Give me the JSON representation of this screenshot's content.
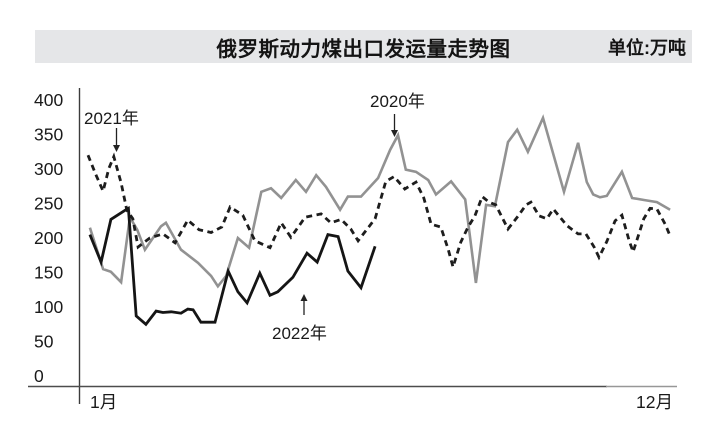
{
  "header": {
    "title": "俄罗斯动力煤出口发运量走势图",
    "unit": "单位:万吨"
  },
  "chart_data": {
    "type": "line",
    "title": "俄罗斯动力煤出口发运量走势图",
    "unit_label": "单位:万吨",
    "ylabel": "万吨",
    "ylim": [
      0,
      400
    ],
    "y_ticks": [
      400,
      350,
      300,
      250,
      200,
      150,
      100,
      50,
      0
    ],
    "x_axis": {
      "start_label": "1月",
      "end_label": "12月",
      "range_months": [
        1,
        13
      ]
    },
    "grid": false,
    "legend_style": "arrow-annotations",
    "series": [
      {
        "name": "2020",
        "label": "2020年",
        "line_style": "solid",
        "color": "#929292",
        "points": [
          [
            1.04,
            215
          ],
          [
            1.31,
            155
          ],
          [
            1.47,
            151
          ],
          [
            1.68,
            136
          ],
          [
            1.86,
            230
          ],
          [
            2.01,
            212
          ],
          [
            2.17,
            183
          ],
          [
            2.5,
            217
          ],
          [
            2.6,
            222
          ],
          [
            2.91,
            183
          ],
          [
            3.26,
            164
          ],
          [
            3.53,
            145
          ],
          [
            3.67,
            130
          ],
          [
            3.84,
            145
          ],
          [
            4.08,
            200
          ],
          [
            4.31,
            186
          ],
          [
            4.56,
            267
          ],
          [
            4.76,
            272
          ],
          [
            4.97,
            258
          ],
          [
            5.27,
            284
          ],
          [
            5.48,
            267
          ],
          [
            5.69,
            291
          ],
          [
            5.89,
            274
          ],
          [
            6.18,
            241
          ],
          [
            6.34,
            260
          ],
          [
            6.61,
            260
          ],
          [
            6.96,
            287
          ],
          [
            7.21,
            328
          ],
          [
            7.37,
            349
          ],
          [
            7.53,
            299
          ],
          [
            7.74,
            296
          ],
          [
            7.99,
            284
          ],
          [
            8.15,
            263
          ],
          [
            8.46,
            282
          ],
          [
            8.75,
            256
          ],
          [
            8.97,
            135
          ],
          [
            9.18,
            248
          ],
          [
            9.36,
            246
          ],
          [
            9.63,
            339
          ],
          [
            9.82,
            357
          ],
          [
            10.04,
            325
          ],
          [
            10.35,
            374
          ],
          [
            10.78,
            267
          ],
          [
            11.07,
            338
          ],
          [
            11.25,
            281
          ],
          [
            11.38,
            263
          ],
          [
            11.52,
            259
          ],
          [
            11.66,
            261
          ],
          [
            11.97,
            296
          ],
          [
            12.18,
            258
          ],
          [
            12.44,
            255
          ],
          [
            12.69,
            252
          ],
          [
            12.96,
            241
          ]
        ]
      },
      {
        "name": "2021",
        "label": "2021年",
        "line_style": "dashed",
        "color": "#1d1d1d",
        "points": [
          [
            1.0,
            320
          ],
          [
            1.16,
            292
          ],
          [
            1.31,
            268
          ],
          [
            1.43,
            301
          ],
          [
            1.53,
            318
          ],
          [
            1.68,
            280
          ],
          [
            1.8,
            240
          ],
          [
            1.92,
            228
          ],
          [
            2.03,
            187
          ],
          [
            2.27,
            200
          ],
          [
            2.54,
            206
          ],
          [
            2.79,
            193
          ],
          [
            3.05,
            226
          ],
          [
            3.28,
            212
          ],
          [
            3.53,
            208
          ],
          [
            3.75,
            216
          ],
          [
            3.92,
            245
          ],
          [
            4.18,
            233
          ],
          [
            4.43,
            196
          ],
          [
            4.74,
            186
          ],
          [
            4.97,
            222
          ],
          [
            5.17,
            201
          ],
          [
            5.46,
            230
          ],
          [
            5.79,
            235
          ],
          [
            5.99,
            222
          ],
          [
            6.2,
            227
          ],
          [
            6.4,
            213
          ],
          [
            6.55,
            196
          ],
          [
            6.9,
            228
          ],
          [
            7.12,
            282
          ],
          [
            7.29,
            289
          ],
          [
            7.51,
            271
          ],
          [
            7.74,
            281
          ],
          [
            7.9,
            258
          ],
          [
            8.05,
            220
          ],
          [
            8.25,
            216
          ],
          [
            8.4,
            184
          ],
          [
            8.5,
            158
          ],
          [
            8.66,
            194
          ],
          [
            8.81,
            216
          ],
          [
            8.95,
            232
          ],
          [
            9.1,
            260
          ],
          [
            9.24,
            252
          ],
          [
            9.38,
            248
          ],
          [
            9.63,
            213
          ],
          [
            9.84,
            232
          ],
          [
            10.0,
            248
          ],
          [
            10.1,
            252
          ],
          [
            10.27,
            232
          ],
          [
            10.43,
            228
          ],
          [
            10.56,
            242
          ],
          [
            10.84,
            218
          ],
          [
            11.07,
            206
          ],
          [
            11.23,
            206
          ],
          [
            11.4,
            187
          ],
          [
            11.5,
            172
          ],
          [
            11.66,
            195
          ],
          [
            11.83,
            225
          ],
          [
            11.97,
            233
          ],
          [
            12.12,
            196
          ],
          [
            12.2,
            180
          ],
          [
            12.42,
            228
          ],
          [
            12.55,
            243
          ],
          [
            12.69,
            242
          ],
          [
            12.86,
            220
          ],
          [
            12.96,
            203
          ]
        ]
      },
      {
        "name": "2022",
        "label": "2022年",
        "line_style": "solid",
        "color": "#151515",
        "points": [
          [
            1.04,
            205
          ],
          [
            1.27,
            165
          ],
          [
            1.47,
            227
          ],
          [
            1.78,
            241
          ],
          [
            1.83,
            243
          ],
          [
            1.99,
            87
          ],
          [
            2.19,
            75
          ],
          [
            2.4,
            94
          ],
          [
            2.54,
            92
          ],
          [
            2.71,
            93
          ],
          [
            2.91,
            91
          ],
          [
            3.05,
            97
          ],
          [
            3.16,
            96
          ],
          [
            3.32,
            78
          ],
          [
            3.61,
            78
          ],
          [
            3.88,
            152
          ],
          [
            4.08,
            122
          ],
          [
            4.27,
            106
          ],
          [
            4.53,
            149
          ],
          [
            4.74,
            117
          ],
          [
            4.9,
            122
          ],
          [
            5.21,
            143
          ],
          [
            5.5,
            178
          ],
          [
            5.71,
            165
          ],
          [
            5.93,
            205
          ],
          [
            6.14,
            202
          ],
          [
            6.34,
            152
          ],
          [
            6.61,
            128
          ],
          [
            6.9,
            188
          ]
        ]
      }
    ]
  }
}
